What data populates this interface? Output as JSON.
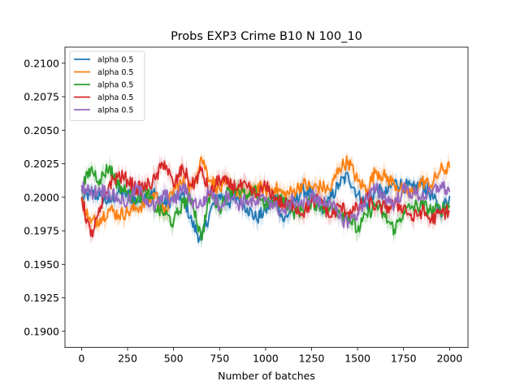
{
  "chart_data": {
    "type": "line",
    "title": "Probs EXP3 Crime B10 N 100_10",
    "xlabel": "Number of batches",
    "ylabel": "",
    "xlim": [
      -90,
      2100
    ],
    "ylim": [
      0.1888,
      0.2112
    ],
    "xticks": [
      0,
      250,
      500,
      750,
      1000,
      1250,
      1500,
      1750,
      2000
    ],
    "yticks": [
      0.19,
      0.1925,
      0.195,
      0.1975,
      0.2,
      0.2025,
      0.205,
      0.2075,
      0.21
    ],
    "ytick_labels": [
      "0.1900",
      "0.1925",
      "0.1950",
      "0.1975",
      "0.2000",
      "0.2025",
      "0.2050",
      "0.2075",
      "0.2100"
    ],
    "grid": false,
    "legend_position": "top-left",
    "band": "shaded band around each line shows variability across runs",
    "series": [
      {
        "name": "alpha 0.5",
        "color": "#1f77b4",
        "x": [
          0,
          50,
          100,
          150,
          200,
          250,
          300,
          350,
          400,
          450,
          500,
          550,
          600,
          650,
          700,
          750,
          800,
          850,
          900,
          950,
          1000,
          1050,
          1100,
          1150,
          1200,
          1250,
          1300,
          1350,
          1400,
          1450,
          1500,
          1550,
          1600,
          1650,
          1700,
          1750,
          1800,
          1850,
          1900,
          1950,
          2000
        ],
        "y": [
          0.1998,
          0.2003,
          0.2001,
          0.1996,
          0.2004,
          0.2002,
          0.1997,
          0.2001,
          0.2003,
          0.1995,
          0.1999,
          0.2002,
          0.1981,
          0.1968,
          0.199,
          0.2002,
          0.1996,
          0.2,
          0.1992,
          0.1984,
          0.199,
          0.2001,
          0.1982,
          0.1994,
          0.2006,
          0.2002,
          0.1991,
          0.1998,
          0.201,
          0.2016,
          0.2002,
          0.1994,
          0.2006,
          0.2002,
          0.2011,
          0.2009,
          0.2006,
          0.201,
          0.2002,
          0.1989,
          0.2001
        ]
      },
      {
        "name": "alpha 0.5",
        "color": "#ff7f0e",
        "x": [
          0,
          50,
          100,
          150,
          200,
          250,
          300,
          350,
          400,
          450,
          500,
          550,
          600,
          650,
          700,
          750,
          800,
          850,
          900,
          950,
          1000,
          1050,
          1100,
          1150,
          1200,
          1250,
          1300,
          1350,
          1400,
          1450,
          1500,
          1550,
          1600,
          1650,
          1700,
          1750,
          1800,
          1850,
          1900,
          1950,
          2000
        ],
        "y": [
          0.1997,
          0.1981,
          0.1984,
          0.1991,
          0.1987,
          0.1989,
          0.1992,
          0.1996,
          0.2003,
          0.1987,
          0.2006,
          0.2011,
          0.2007,
          0.203,
          0.2013,
          0.2006,
          0.201,
          0.2003,
          0.2001,
          0.2008,
          0.2005,
          0.2007,
          0.2002,
          0.2004,
          0.201,
          0.2007,
          0.2008,
          0.2005,
          0.2022,
          0.2027,
          0.2012,
          0.2006,
          0.202,
          0.2015,
          0.201,
          0.2005,
          0.2003,
          0.2012,
          0.2009,
          0.202,
          0.2022
        ]
      },
      {
        "name": "alpha 0.5",
        "color": "#2ca02c",
        "x": [
          0,
          50,
          100,
          150,
          200,
          250,
          300,
          350,
          400,
          450,
          500,
          550,
          600,
          650,
          700,
          750,
          800,
          850,
          900,
          950,
          1000,
          1050,
          1100,
          1150,
          1200,
          1250,
          1300,
          1350,
          1400,
          1450,
          1500,
          1550,
          1600,
          1650,
          1700,
          1750,
          1800,
          1850,
          1900,
          1950,
          2000
        ],
        "y": [
          0.2006,
          0.2021,
          0.2013,
          0.2023,
          0.2009,
          0.2003,
          0.1999,
          0.2004,
          0.1992,
          0.1988,
          0.1981,
          0.1996,
          0.1999,
          0.1969,
          0.2003,
          0.1992,
          0.2005,
          0.2007,
          0.1999,
          0.2004,
          0.1994,
          0.1996,
          0.2,
          0.1989,
          0.1991,
          0.1997,
          0.1993,
          0.1992,
          0.199,
          0.1986,
          0.1975,
          0.1987,
          0.1995,
          0.1985,
          0.1976,
          0.1989,
          0.1993,
          0.1994,
          0.199,
          0.1991,
          0.1994
        ]
      },
      {
        "name": "alpha 0.5",
        "color": "#d62728",
        "x": [
          0,
          50,
          100,
          150,
          200,
          250,
          300,
          350,
          400,
          450,
          500,
          550,
          600,
          650,
          700,
          750,
          800,
          850,
          900,
          950,
          1000,
          1050,
          1100,
          1150,
          1200,
          1250,
          1300,
          1350,
          1400,
          1450,
          1500,
          1550,
          1600,
          1650,
          1700,
          1750,
          1800,
          1850,
          1900,
          1950,
          2000
        ],
        "y": [
          0.2,
          0.1971,
          0.1989,
          0.201,
          0.2016,
          0.2013,
          0.2006,
          0.2008,
          0.2013,
          0.2027,
          0.2008,
          0.2022,
          0.2008,
          0.202,
          0.2002,
          0.2014,
          0.2009,
          0.2008,
          0.2007,
          0.2001,
          0.2008,
          0.2,
          0.1994,
          0.1995,
          0.1988,
          0.1996,
          0.1999,
          0.1985,
          0.1993,
          0.1989,
          0.1991,
          0.1999,
          0.1993,
          0.1992,
          0.1994,
          0.1993,
          0.1984,
          0.199,
          0.1983,
          0.1988,
          0.199
        ]
      },
      {
        "name": "alpha 0.5",
        "color": "#9467bd",
        "x": [
          0,
          50,
          100,
          150,
          200,
          250,
          300,
          350,
          400,
          450,
          500,
          550,
          600,
          650,
          700,
          750,
          800,
          850,
          900,
          950,
          1000,
          1050,
          1100,
          1150,
          1200,
          1250,
          1300,
          1350,
          1400,
          1450,
          1500,
          1550,
          1600,
          1650,
          1700,
          1750,
          1800,
          1850,
          1900,
          1950,
          2000
        ],
        "y": [
          0.2009,
          0.2003,
          0.2006,
          0.2003,
          0.1999,
          0.1996,
          0.2007,
          0.1999,
          0.1992,
          0.2002,
          0.1996,
          0.2008,
          0.1997,
          0.1994,
          0.2005,
          0.1993,
          0.2003,
          0.1995,
          0.1998,
          0.1995,
          0.2,
          0.1993,
          0.1989,
          0.1998,
          0.1994,
          0.2001,
          0.1995,
          0.1998,
          0.1984,
          0.1982,
          0.1988,
          0.2,
          0.2006,
          0.2,
          0.1995,
          0.2006,
          0.2003,
          0.2001,
          0.2003,
          0.2009,
          0.2004
        ]
      }
    ]
  }
}
